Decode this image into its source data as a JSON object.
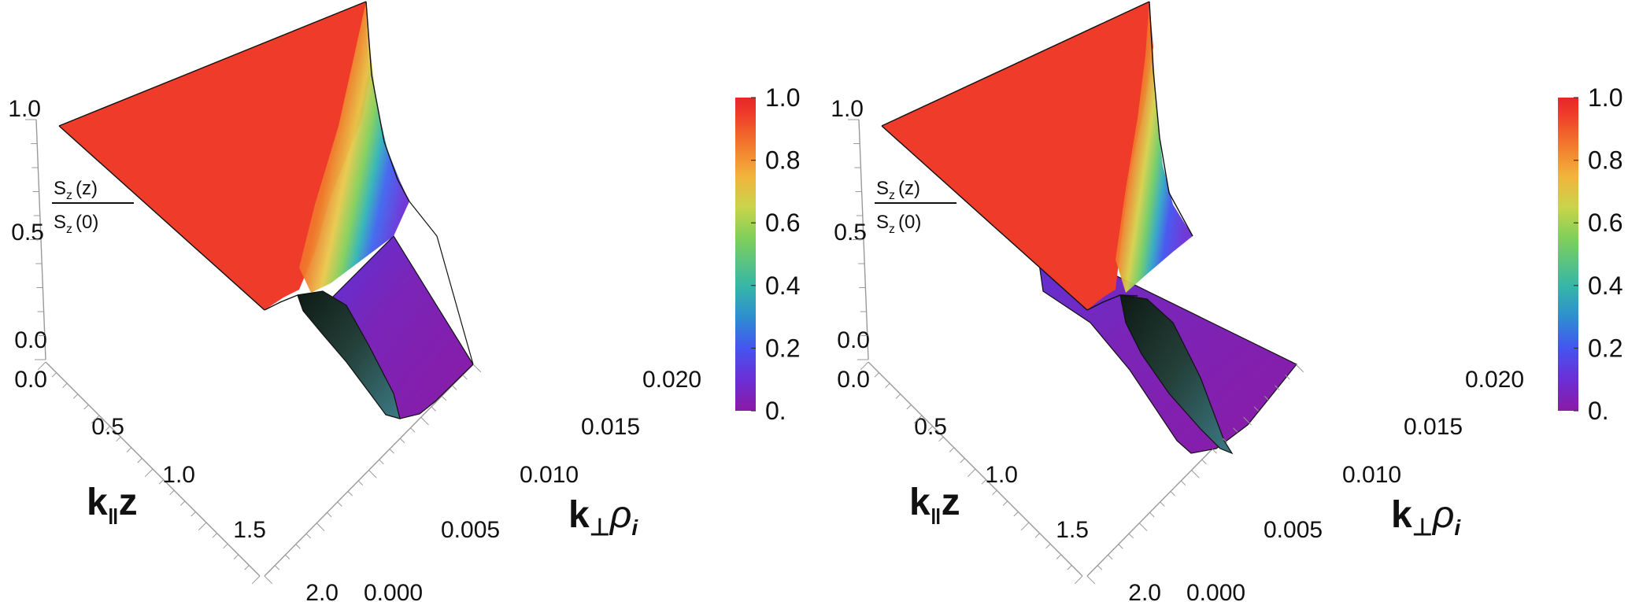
{
  "colors": {
    "viridis_stops": [
      "#8b1aa6",
      "#6b2fd6",
      "#4455f0",
      "#2e8fd0",
      "#36b7a6",
      "#7fcf5a",
      "#c9d44a",
      "#f2b33c",
      "#f2782c",
      "#ef3b2a",
      "#e6262a"
    ],
    "mesh_edge": "#111111"
  },
  "chart_data": [
    {
      "type": "surface3d",
      "xlabel": "k",
      "xlabel_sub": "‖",
      "xlabel_tail": "z",
      "ylabel": "k",
      "ylabel_sub": "⊥",
      "ylabel_tail": "ρ",
      "ylabel_tail_sub": "i",
      "zlabel_num": "S",
      "zlabel_num_sub": "z",
      "zlabel_num_arg": "(z)",
      "zlabel_den": "S",
      "zlabel_den_sub": "z",
      "zlabel_den_arg": "(0)",
      "x_ticks": [
        "0.0",
        "0.5",
        "1.0",
        "1.5",
        "2.0"
      ],
      "y_ticks": [
        "0.000",
        "0.005",
        "0.010",
        "0.015",
        "0.020"
      ],
      "z_ticks": [
        "0.0",
        "0.5",
        "1.0"
      ],
      "colorbar_ticks": [
        "0.",
        "0.2",
        "0.4",
        "0.6",
        "0.8",
        "1.0"
      ],
      "x_range": [
        0,
        2
      ],
      "y_range": [
        0,
        0.02
      ],
      "z_range": [
        0,
        1
      ],
      "colorbar_range": [
        0,
        1
      ]
    },
    {
      "type": "surface3d",
      "xlabel": "k",
      "xlabel_sub": "‖",
      "xlabel_tail": "z",
      "ylabel": "k",
      "ylabel_sub": "⊥",
      "ylabel_tail": "ρ",
      "ylabel_tail_sub": "i",
      "zlabel_num": "S",
      "zlabel_num_sub": "z",
      "zlabel_num_arg": "(z)",
      "zlabel_den": "S",
      "zlabel_den_sub": "z",
      "zlabel_den_arg": "(0)",
      "x_ticks": [
        "0.0",
        "0.5",
        "1.0",
        "1.5",
        "2.0"
      ],
      "y_ticks": [
        "0.000",
        "0.005",
        "0.010",
        "0.015",
        "0.020"
      ],
      "z_ticks": [
        "0.0",
        "0.5",
        "1.0"
      ],
      "colorbar_ticks": [
        "0.",
        "0.2",
        "0.4",
        "0.6",
        "0.8",
        "1.0"
      ],
      "x_range": [
        0,
        2
      ],
      "y_range": [
        0,
        0.02
      ],
      "z_range": [
        0,
        1
      ],
      "colorbar_range": [
        0,
        1
      ]
    }
  ]
}
